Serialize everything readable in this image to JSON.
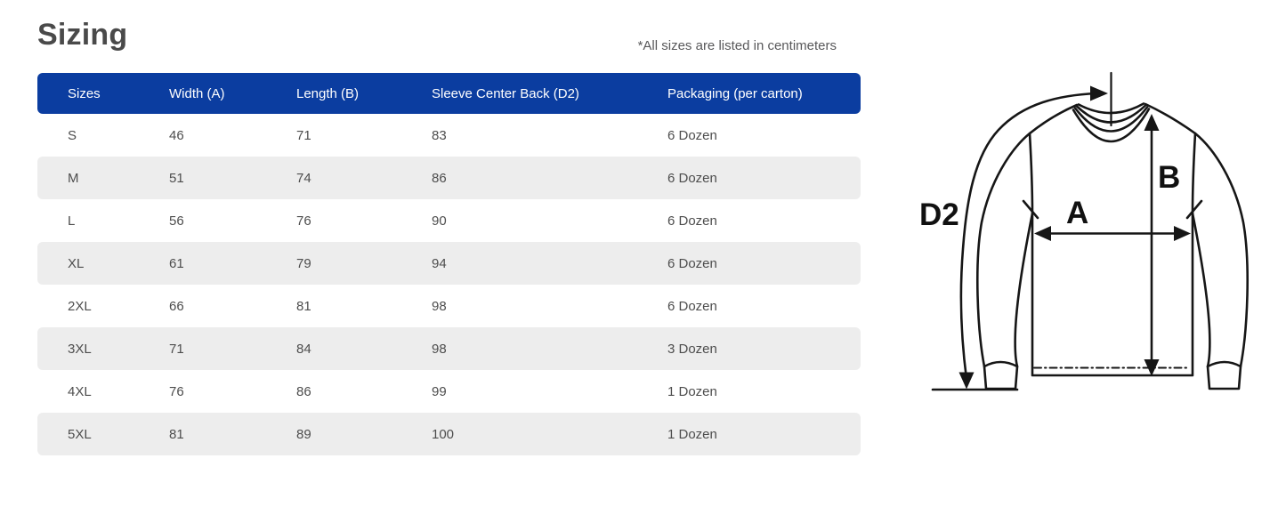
{
  "page": {
    "title": "Sizing",
    "note": "*All sizes are listed in centimeters"
  },
  "table": {
    "columns": [
      "Sizes",
      "Width (A)",
      "Length (B)",
      "Sleeve Center Back (D2)",
      "Packaging (per carton)"
    ],
    "rows": [
      [
        "S",
        "46",
        "71",
        "83",
        "6 Dozen"
      ],
      [
        "M",
        "51",
        "74",
        "86",
        "6 Dozen"
      ],
      [
        "L",
        "56",
        "76",
        "90",
        "6 Dozen"
      ],
      [
        "XL",
        "61",
        "79",
        "94",
        "6 Dozen"
      ],
      [
        "2XL",
        "66",
        "81",
        "98",
        "6 Dozen"
      ],
      [
        "3XL",
        "71",
        "84",
        "98",
        "3 Dozen"
      ],
      [
        "4XL",
        "76",
        "86",
        "99",
        "1 Dozen"
      ],
      [
        "5XL",
        "81",
        "89",
        "100",
        "1 Dozen"
      ]
    ]
  },
  "diagram": {
    "labels": {
      "width": "A",
      "length": "B",
      "sleeve": "D2"
    }
  },
  "colors": {
    "header_bg": "#0b3da0",
    "row_alt_bg": "#ededed",
    "header_text": "#ffffff",
    "body_text": "#4d4d4d",
    "title_text": "#4a4a4a",
    "diagram_line": "#161616"
  }
}
